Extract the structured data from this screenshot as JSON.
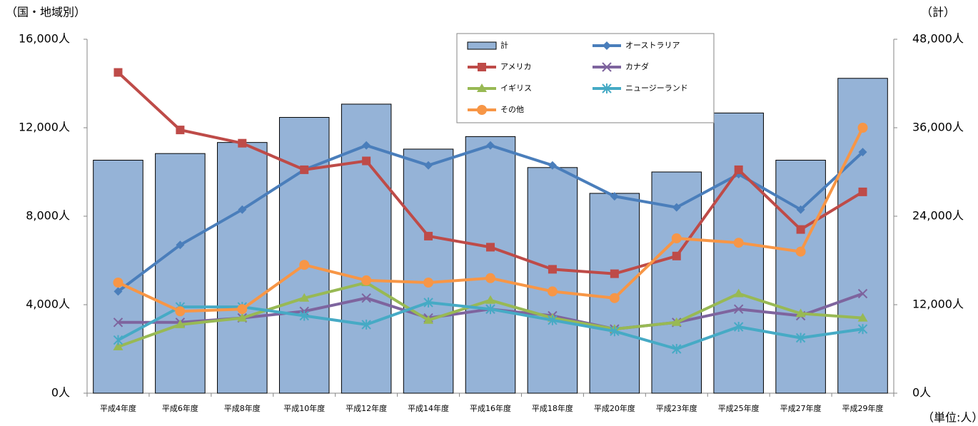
{
  "chart_data": {
    "type": "combo",
    "title_left": "（国・地域別）",
    "title_right": "（計）",
    "unit_note": "（単位:人）",
    "categories": [
      "平成4年度",
      "平成6年度",
      "平成8年度",
      "平成10年度",
      "平成12年度",
      "平成14年度",
      "平成16年度",
      "平成18年度",
      "平成20年度",
      "平成23年度",
      "平成25年度",
      "平成27年度",
      "平成29年度"
    ],
    "ylim": [
      0,
      16000
    ],
    "yticks": [
      {
        "value": 0,
        "label": "0人"
      },
      {
        "value": 4000,
        "label": "4,000人"
      },
      {
        "value": 8000,
        "label": "8,000人"
      },
      {
        "value": 12000,
        "label": "12,000人"
      },
      {
        "value": 16000,
        "label": "16,000人"
      }
    ],
    "y2lim": [
      0,
      48000
    ],
    "y2ticks": [
      {
        "value": 0,
        "label": "0人"
      },
      {
        "value": 12000,
        "label": "12,000人"
      },
      {
        "value": 24000,
        "label": "24,000人"
      },
      {
        "value": 36000,
        "label": "36,000人"
      },
      {
        "value": 48000,
        "label": "48,000人"
      }
    ],
    "series": [
      {
        "name": "計",
        "type": "bar",
        "axis": "y2",
        "color": "#95b3d7",
        "values": [
          31600,
          32500,
          34000,
          37400,
          39200,
          33100,
          34800,
          30600,
          27100,
          30000,
          38000,
          31600,
          42700
        ]
      },
      {
        "name": "オーストラリア",
        "type": "line",
        "marker": "diamond",
        "color": "#4a7ebb",
        "values": [
          4600,
          6700,
          8300,
          10100,
          11200,
          10300,
          11200,
          10300,
          8900,
          8400,
          9900,
          8300,
          10900
        ]
      },
      {
        "name": "アメリカ",
        "type": "line",
        "marker": "square",
        "color": "#be4b48",
        "values": [
          14500,
          11900,
          11300,
          10100,
          10500,
          7100,
          6600,
          5600,
          5400,
          6200,
          10100,
          7400,
          9100
        ]
      },
      {
        "name": "カナダ",
        "type": "line",
        "marker": "x",
        "color": "#7e649e",
        "values": [
          3200,
          3200,
          3400,
          3700,
          4300,
          3400,
          3800,
          3500,
          2900,
          3200,
          3800,
          3500,
          4500
        ]
      },
      {
        "name": "イギリス",
        "type": "line",
        "marker": "triangle",
        "color": "#98b954",
        "values": [
          2100,
          3100,
          3400,
          4300,
          5000,
          3300,
          4200,
          3400,
          2900,
          3200,
          4500,
          3600,
          3400
        ]
      },
      {
        "name": "ニュージーランド",
        "type": "line",
        "marker": "star",
        "color": "#46aac5",
        "values": [
          2400,
          3900,
          3900,
          3500,
          3100,
          4100,
          3800,
          3300,
          2800,
          2000,
          3000,
          2500,
          2900
        ]
      },
      {
        "name": "その他",
        "type": "line",
        "marker": "circle",
        "color": "#f79646",
        "values": [
          5000,
          3700,
          3800,
          5800,
          5100,
          5000,
          5200,
          4600,
          4300,
          7000,
          6800,
          6400,
          12000
        ]
      }
    ]
  }
}
